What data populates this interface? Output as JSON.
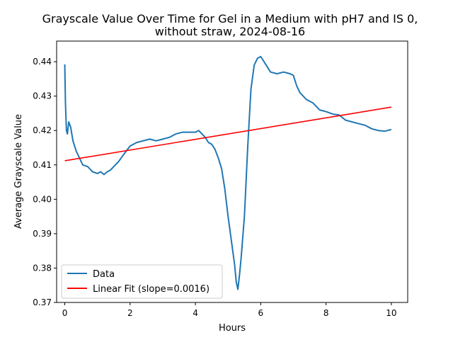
{
  "chart_data": {
    "type": "line",
    "title_line1": "Grayscale Value Over Time for Gel in a Medium with pH7 and IS 0,",
    "title_line2": "without straw, 2024-08-16",
    "xlabel": "Hours",
    "ylabel": "Average Grayscale Value",
    "xlim": [
      -0.25,
      10.5
    ],
    "ylim": [
      0.37,
      0.446
    ],
    "x_ticks": [
      0,
      2,
      4,
      6,
      8,
      10
    ],
    "x_tick_labels": [
      "0",
      "2",
      "4",
      "6",
      "8",
      "10"
    ],
    "y_ticks": [
      0.37,
      0.38,
      0.39,
      0.4,
      0.41,
      0.42,
      0.43,
      0.44
    ],
    "y_tick_labels": [
      "0.37",
      "0.38",
      "0.39",
      "0.40",
      "0.41",
      "0.42",
      "0.43",
      "0.44"
    ],
    "grid": false,
    "legend_position": "lower-left",
    "series": [
      {
        "name": "Data",
        "color": "#1f77b4",
        "x": [
          0.0,
          0.02,
          0.05,
          0.08,
          0.12,
          0.18,
          0.25,
          0.35,
          0.45,
          0.55,
          0.7,
          0.85,
          1.0,
          1.1,
          1.2,
          1.3,
          1.4,
          1.5,
          1.65,
          1.8,
          2.0,
          2.2,
          2.4,
          2.6,
          2.8,
          3.0,
          3.2,
          3.4,
          3.6,
          3.8,
          4.0,
          4.1,
          4.2,
          4.3,
          4.4,
          4.5,
          4.6,
          4.7,
          4.8,
          4.9,
          5.0,
          5.1,
          5.2,
          5.25,
          5.3,
          5.35,
          5.4,
          5.5,
          5.6,
          5.7,
          5.8,
          5.9,
          6.0,
          6.1,
          6.2,
          6.3,
          6.5,
          6.7,
          6.9,
          7.0,
          7.1,
          7.2,
          7.4,
          7.6,
          7.8,
          8.0,
          8.2,
          8.4,
          8.6,
          8.8,
          9.0,
          9.2,
          9.4,
          9.6,
          9.8,
          10.0
        ],
        "y": [
          0.4392,
          0.428,
          0.42,
          0.419,
          0.4225,
          0.421,
          0.417,
          0.414,
          0.412,
          0.41,
          0.4095,
          0.408,
          0.4075,
          0.408,
          0.4072,
          0.408,
          0.4085,
          0.4095,
          0.411,
          0.413,
          0.4155,
          0.4165,
          0.417,
          0.4175,
          0.417,
          0.4175,
          0.418,
          0.419,
          0.4195,
          0.4195,
          0.4195,
          0.42,
          0.419,
          0.418,
          0.4165,
          0.416,
          0.4145,
          0.412,
          0.409,
          0.403,
          0.395,
          0.388,
          0.381,
          0.376,
          0.3738,
          0.378,
          0.383,
          0.395,
          0.415,
          0.432,
          0.439,
          0.441,
          0.4415,
          0.44,
          0.4385,
          0.437,
          0.4365,
          0.437,
          0.4365,
          0.436,
          0.433,
          0.431,
          0.429,
          0.428,
          0.426,
          0.4255,
          0.4248,
          0.4245,
          0.423,
          0.4225,
          0.422,
          0.4215,
          0.4205,
          0.42,
          0.4198,
          0.4203
        ]
      },
      {
        "name": "Linear Fit (slope=0.0016)",
        "color": "#ff0000",
        "x": [
          0,
          10
        ],
        "y": [
          0.4112,
          0.4268
        ]
      }
    ]
  }
}
